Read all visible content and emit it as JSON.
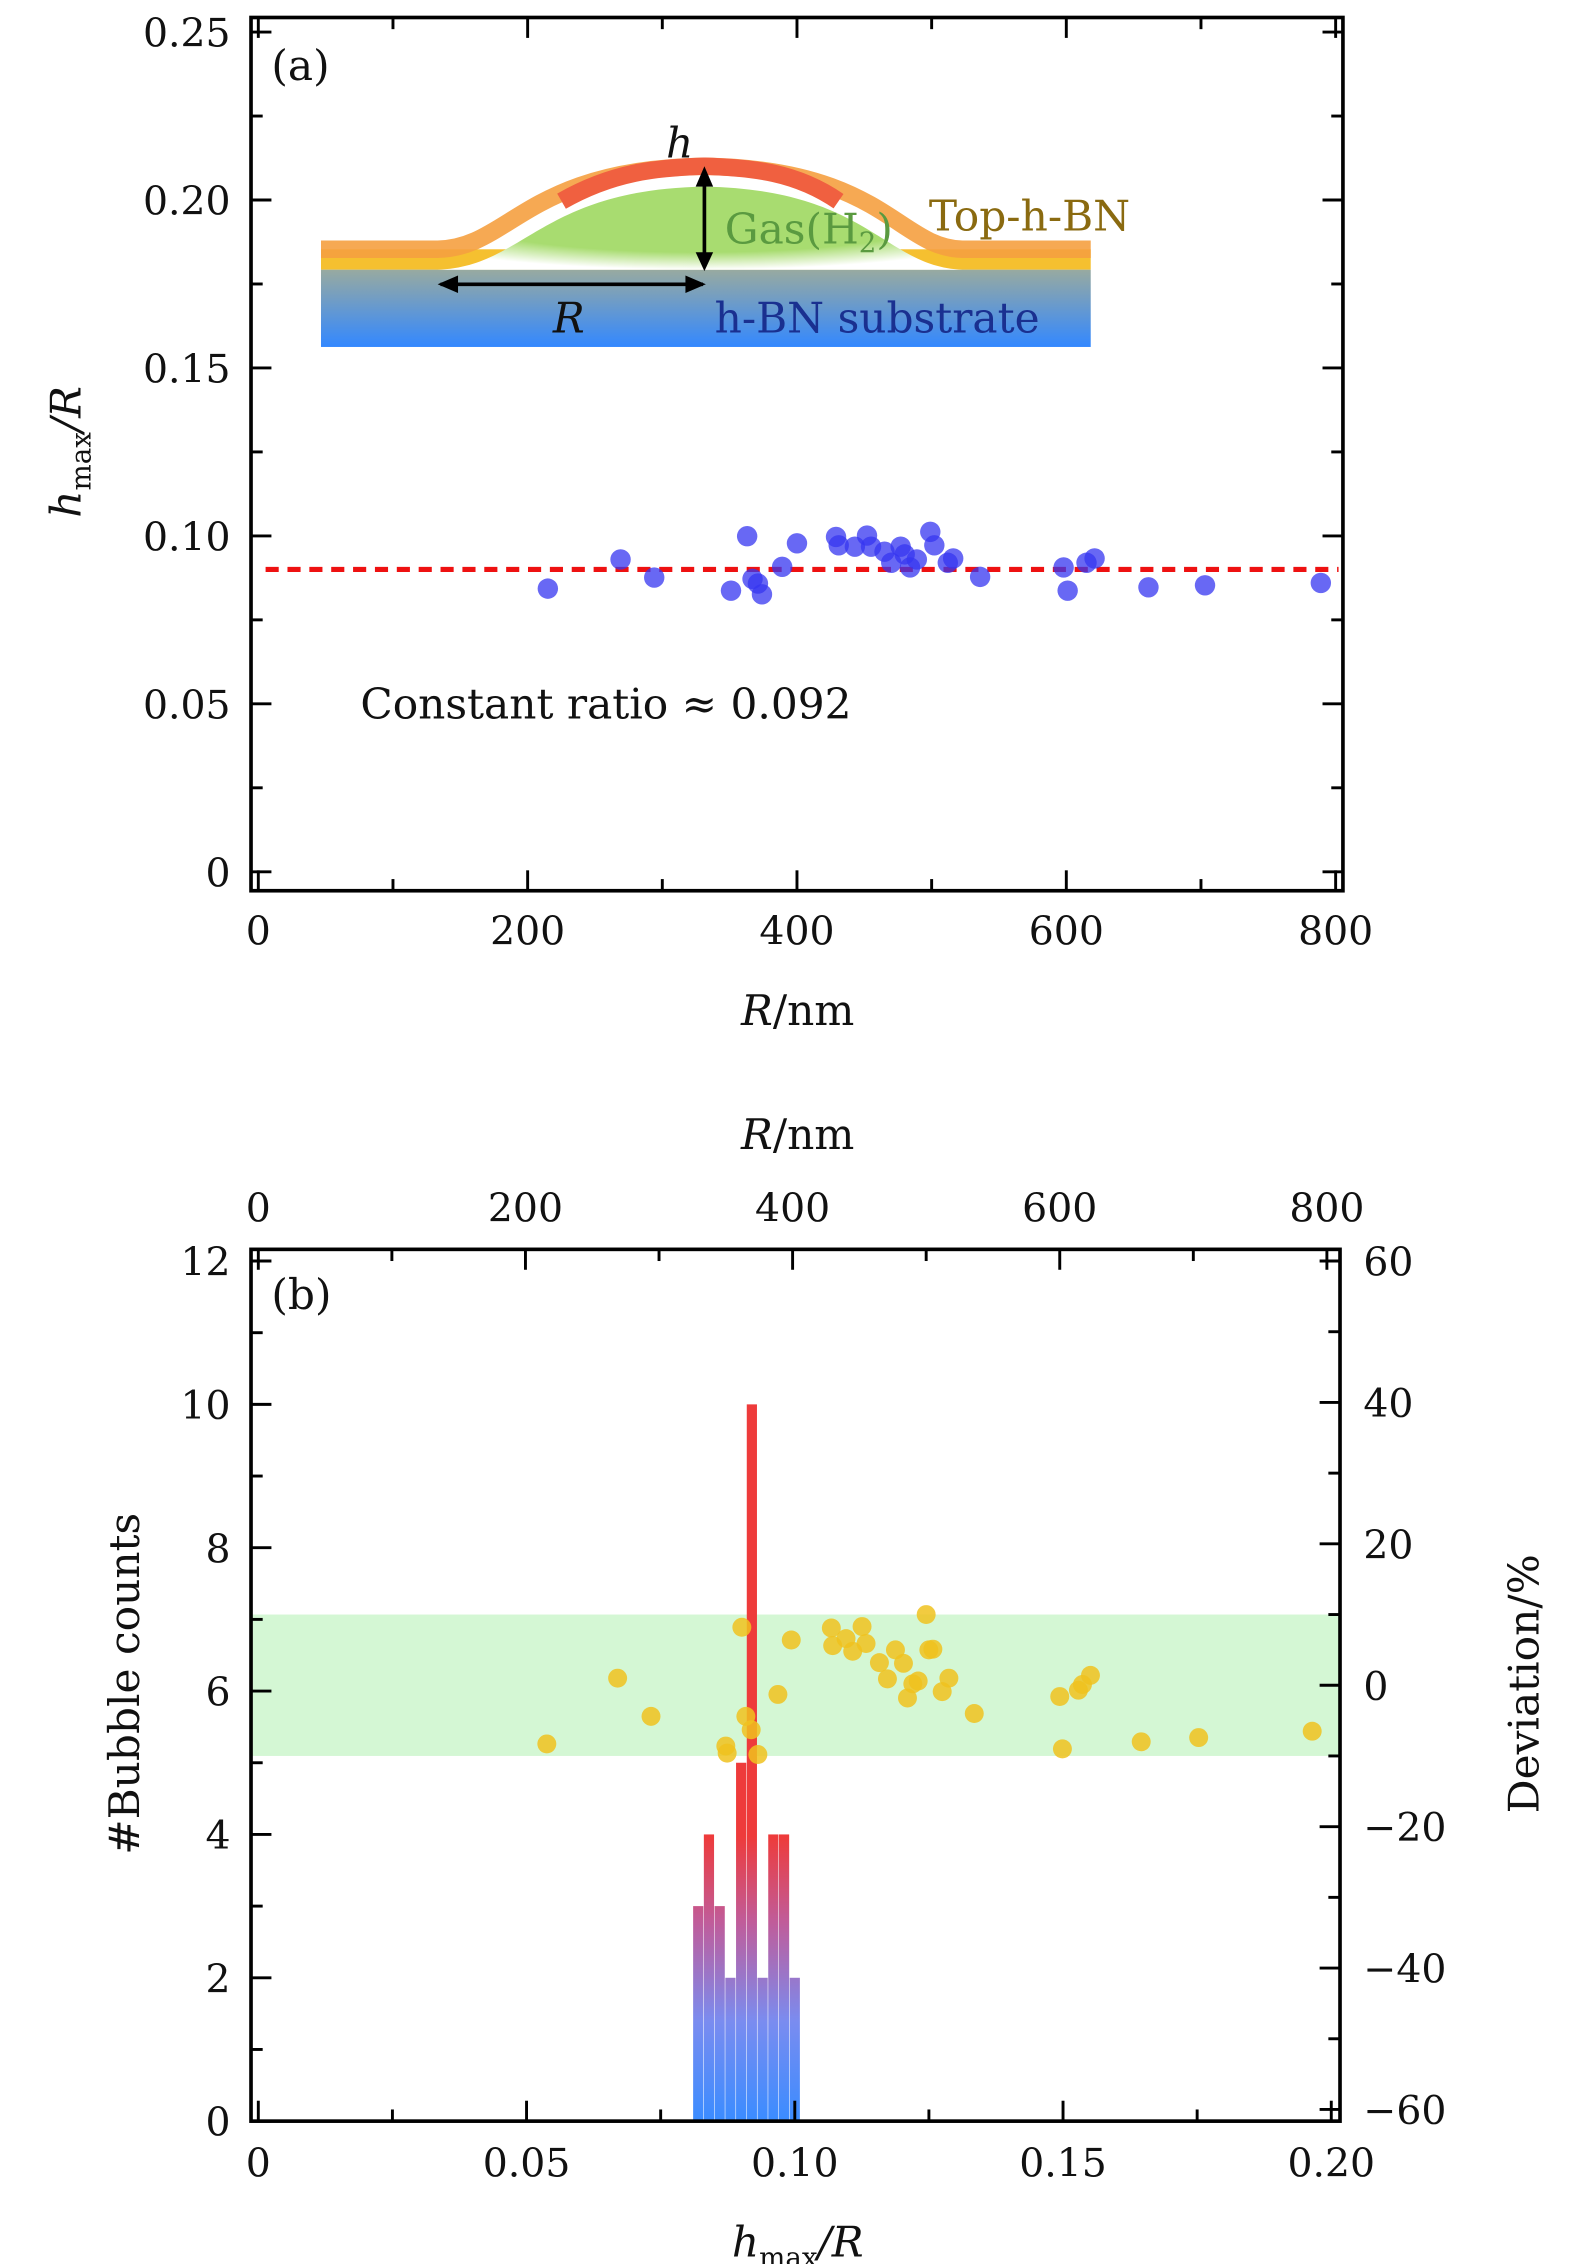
{
  "chart_data": [
    {
      "panel": "(a)",
      "type": "scatter",
      "xlabel": {
        "main": "R",
        "rest": "/nm"
      },
      "ylabel": {
        "main": "h",
        "sub": "max",
        "rest": "/R"
      },
      "xlim": [
        0,
        800
      ],
      "ylim": [
        0,
        0.25
      ],
      "xticks": [
        0,
        200,
        400,
        600,
        800
      ],
      "xtick_labels": [
        "0",
        "200",
        "400",
        "600",
        "800"
      ],
      "yticks": [
        0,
        0.05,
        0.1,
        0.15,
        0.2,
        0.25
      ],
      "ytick_labels": [
        "0",
        "0.05",
        "0.10",
        "0.15",
        "0.20",
        "0.25"
      ],
      "point_color": "#3535f0",
      "points": [
        [
          215,
          0.0843
        ],
        [
          269,
          0.093
        ],
        [
          294,
          0.0876
        ],
        [
          351,
          0.0837
        ],
        [
          363,
          0.0999
        ],
        [
          367,
          0.0872
        ],
        [
          371,
          0.0858
        ],
        [
          374,
          0.0826
        ],
        [
          389,
          0.0908
        ],
        [
          400,
          0.0978
        ],
        [
          429,
          0.0997
        ],
        [
          431,
          0.0972
        ],
        [
          443,
          0.0968
        ],
        [
          452,
          0.1001
        ],
        [
          455,
          0.0968
        ],
        [
          465,
          0.0953
        ],
        [
          470,
          0.092
        ],
        [
          477,
          0.0968
        ],
        [
          480,
          0.0945
        ],
        [
          484,
          0.0906
        ],
        [
          489,
          0.093
        ],
        [
          499,
          0.1012
        ],
        [
          502,
          0.0972
        ],
        [
          512,
          0.092
        ],
        [
          516,
          0.0933
        ],
        [
          536,
          0.0878
        ],
        [
          598,
          0.0906
        ],
        [
          601,
          0.0837
        ],
        [
          615,
          0.092
        ],
        [
          621,
          0.0933
        ],
        [
          661,
          0.0847
        ],
        [
          703,
          0.0853
        ],
        [
          789,
          0.086
        ]
      ],
      "reference_line": {
        "y": 0.09,
        "style": "dashed",
        "color": "#ee1111"
      },
      "annotation": "Constant ratio ≈ 0.092",
      "inset": {
        "h_label": "h",
        "gas_label": "Gas(H",
        "gas_sub": "2",
        "gas_close": ")",
        "top_label": "Top-h-BN",
        "r_label": "R",
        "substrate_label": "h-BN substrate",
        "colors": {
          "cap": "#f06040",
          "gas": "#a8dc70",
          "top": "#f5c030",
          "substrate_top": "#98aaa0",
          "substrate_bottom": "#3388ff",
          "top_text": "#8a6a10",
          "gas_text": "#5a9a40",
          "substrate_text": "#1a3090"
        }
      }
    },
    {
      "panel": "(b)",
      "type": "bar",
      "xlabel": {
        "main": "h",
        "sub": "max",
        "rest": "/R"
      },
      "ylabel": "#Bubble counts",
      "top_xlabel": {
        "main": "R",
        "rest": "/nm"
      },
      "right_ylabel": "Deviation/%",
      "xlim": [
        0,
        0.2
      ],
      "ylim": [
        0,
        12
      ],
      "top_xlim": [
        0,
        800
      ],
      "right_ylim": [
        -60,
        60
      ],
      "xtick_labels": [
        "0",
        "0.05",
        "0.10",
        "0.15",
        "0.20"
      ],
      "xticks": [
        0,
        0.05,
        0.1,
        0.15,
        0.2
      ],
      "ytick_labels": [
        "0",
        "2",
        "4",
        "6",
        "8",
        "10",
        "12"
      ],
      "yticks": [
        0,
        2,
        4,
        6,
        8,
        10,
        12
      ],
      "top_xticks": [
        0,
        200,
        400,
        600,
        800
      ],
      "top_xtick_labels": [
        "0",
        "200",
        "400",
        "600",
        "800"
      ],
      "right_yticks": [
        -60,
        -40,
        -20,
        0,
        20,
        40,
        60
      ],
      "right_ytick_labels": [
        "−60",
        "−40",
        "−20",
        "0",
        "20",
        "40",
        "60"
      ],
      "histogram": {
        "bins": [
          0.082,
          0.084,
          0.086,
          0.088,
          0.09,
          0.092,
          0.094,
          0.096,
          0.098,
          0.1
        ],
        "counts": [
          3,
          4,
          3,
          2,
          5,
          10,
          2,
          4,
          4,
          2
        ],
        "color_top": "#ee3b3b",
        "color_bottom": "#3a8cff"
      },
      "band": {
        "from": -10,
        "to": 10,
        "color": "#d4f7d4"
      },
      "deviation_color": "#f0c21e",
      "deviation_points": [
        [
          216,
          -8.3
        ],
        [
          269,
          1.0
        ],
        [
          294,
          -4.4
        ],
        [
          350,
          -8.6
        ],
        [
          351,
          -9.6
        ],
        [
          362,
          8.2
        ],
        [
          365,
          -4.4
        ],
        [
          369,
          -6.3
        ],
        [
          374,
          -9.8
        ],
        [
          389,
          -1.3
        ],
        [
          399,
          6.4
        ],
        [
          429,
          8.1
        ],
        [
          430,
          5.6
        ],
        [
          440,
          6.6
        ],
        [
          445,
          4.8
        ],
        [
          452,
          8.3
        ],
        [
          455,
          5.9
        ],
        [
          465,
          3.2
        ],
        [
          471,
          0.9
        ],
        [
          477,
          5.0
        ],
        [
          483,
          3.1
        ],
        [
          486,
          -1.8
        ],
        [
          490,
          0.2
        ],
        [
          494,
          0.6
        ],
        [
          500,
          10.0
        ],
        [
          502,
          5.0
        ],
        [
          505,
          5.1
        ],
        [
          512,
          -0.9
        ],
        [
          517,
          1.0
        ],
        [
          536,
          -4.0
        ],
        [
          600,
          -1.6
        ],
        [
          602,
          -9.0
        ],
        [
          614,
          -0.7
        ],
        [
          617,
          0.1
        ],
        [
          623,
          1.4
        ],
        [
          661,
          -8.0
        ],
        [
          704,
          -7.4
        ],
        [
          789,
          -6.5
        ]
      ]
    }
  ]
}
